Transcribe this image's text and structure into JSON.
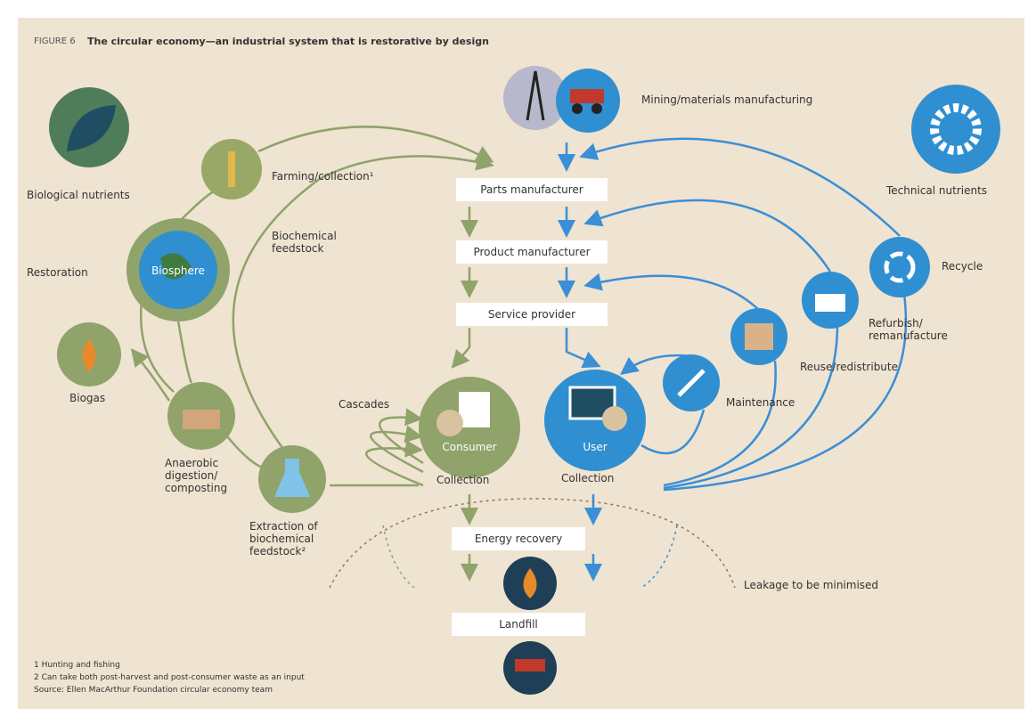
{
  "header": {
    "figure_label": "FIGURE 6",
    "title": "The circular economy—an industrial system that is restorative by design"
  },
  "nodes": {
    "biological_nutrients": "Biological nutrients",
    "technical_nutrients": "Technical nutrients",
    "mining": "Mining/materials manufacturing",
    "farming": "Farming/collection¹",
    "biochemical_feedstock": "Biochemical feedstock",
    "parts_manufacturer": "Parts manufacturer",
    "product_manufacturer": "Product manufacturer",
    "service_provider": "Service provider",
    "restoration": "Restoration",
    "biosphere": "Biosphere",
    "biogas": "Biogas",
    "anaerobic": "Anaerobic digestion/ composting",
    "extraction": "Extraction of biochemical feedstock²",
    "cascades": "Cascades",
    "consumer": "Consumer",
    "consumer_collection": "Collection",
    "user": "User",
    "user_collection": "Collection",
    "maintenance": "Maintenance",
    "reuse": "Reuse/redistribute",
    "refurbish": "Refurbish/ remanufacture",
    "recycle": "Recycle",
    "energy_recovery": "Energy recovery",
    "landfill": "Landfill",
    "leakage": "Leakage to be minimised"
  },
  "footnotes": [
    "1 Hunting and fishing",
    "2 Can take both post-harvest and post-consumer waste as an input",
    "Source: Ellen MacArthur Foundation circular economy team"
  ]
}
